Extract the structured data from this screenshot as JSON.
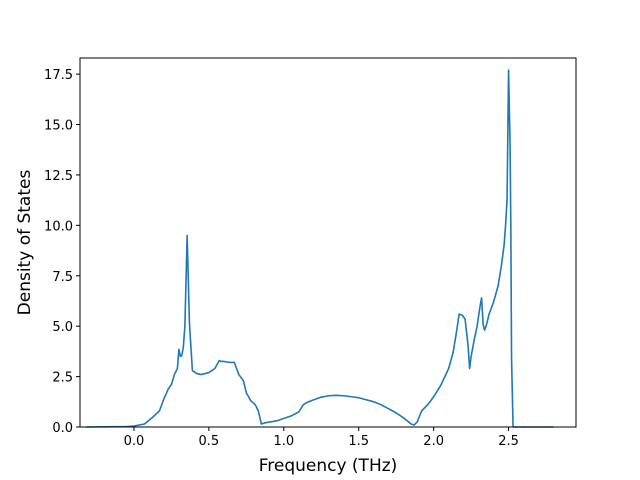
{
  "chart_data": {
    "type": "line",
    "title": "",
    "xlabel": "Frequency (THz)",
    "ylabel": "Density of States",
    "xlim": [
      -0.36,
      2.95
    ],
    "ylim": [
      0,
      18.3
    ],
    "grid": false,
    "legend": "none",
    "line_color": "#1f77b4",
    "xticks": [
      0.0,
      0.5,
      1.0,
      1.5,
      2.0,
      2.5
    ],
    "xtick_labels": [
      "0.0",
      "0.5",
      "1.0",
      "1.5",
      "2.0",
      "2.5"
    ],
    "yticks": [
      0.0,
      2.5,
      5.0,
      7.5,
      10.0,
      12.5,
      15.0,
      17.5
    ],
    "ytick_labels": [
      "0.0",
      "2.5",
      "5.0",
      "7.5",
      "10.0",
      "12.5",
      "15.0",
      "17.5"
    ],
    "series": [
      {
        "x": [
          -0.32,
          -0.05,
          0.0,
          0.07,
          0.12,
          0.17,
          0.2,
          0.23,
          0.25,
          0.27,
          0.29,
          0.3,
          0.31,
          0.32,
          0.33,
          0.34,
          0.355,
          0.37,
          0.39,
          0.42,
          0.45,
          0.5,
          0.54,
          0.57,
          0.58,
          0.6,
          0.64,
          0.67,
          0.7,
          0.73,
          0.75,
          0.78,
          0.81,
          0.83,
          0.85,
          0.87,
          0.95,
          1.05,
          1.1,
          1.13,
          1.15,
          1.2,
          1.25,
          1.3,
          1.35,
          1.4,
          1.45,
          1.5,
          1.55,
          1.6,
          1.65,
          1.7,
          1.75,
          1.8,
          1.85,
          1.87,
          1.89,
          1.92,
          1.96,
          2.0,
          2.05,
          2.1,
          2.13,
          2.15,
          2.17,
          2.19,
          2.21,
          2.23,
          2.24,
          2.25,
          2.27,
          2.29,
          2.31,
          2.32,
          2.33,
          2.34,
          2.35,
          2.37,
          2.4,
          2.43,
          2.45,
          2.47,
          2.48,
          2.49,
          2.5,
          2.51,
          2.515,
          2.52,
          2.53,
          2.54,
          2.55,
          2.6,
          2.8
        ],
        "y": [
          0.0,
          0.02,
          0.05,
          0.15,
          0.45,
          0.8,
          1.4,
          1.9,
          2.1,
          2.6,
          2.9,
          3.85,
          3.5,
          3.55,
          4.0,
          5.0,
          9.5,
          5.2,
          2.8,
          2.65,
          2.6,
          2.7,
          2.9,
          3.3,
          3.25,
          3.25,
          3.2,
          3.2,
          2.6,
          2.3,
          1.7,
          1.3,
          1.1,
          0.8,
          0.15,
          0.2,
          0.3,
          0.55,
          0.75,
          1.1,
          1.2,
          1.35,
          1.48,
          1.55,
          1.57,
          1.55,
          1.5,
          1.45,
          1.35,
          1.25,
          1.1,
          0.9,
          0.7,
          0.45,
          0.15,
          0.1,
          0.25,
          0.8,
          1.1,
          1.5,
          2.1,
          2.9,
          3.7,
          4.6,
          5.6,
          5.55,
          5.35,
          4.0,
          2.9,
          3.5,
          4.3,
          5.0,
          6.0,
          6.4,
          5.1,
          4.8,
          5.0,
          5.6,
          6.2,
          7.0,
          7.9,
          9.0,
          10.0,
          11.3,
          17.7,
          14.0,
          10.0,
          3.4,
          0.0,
          0.0,
          0.0,
          0.0,
          0.0
        ]
      }
    ]
  }
}
